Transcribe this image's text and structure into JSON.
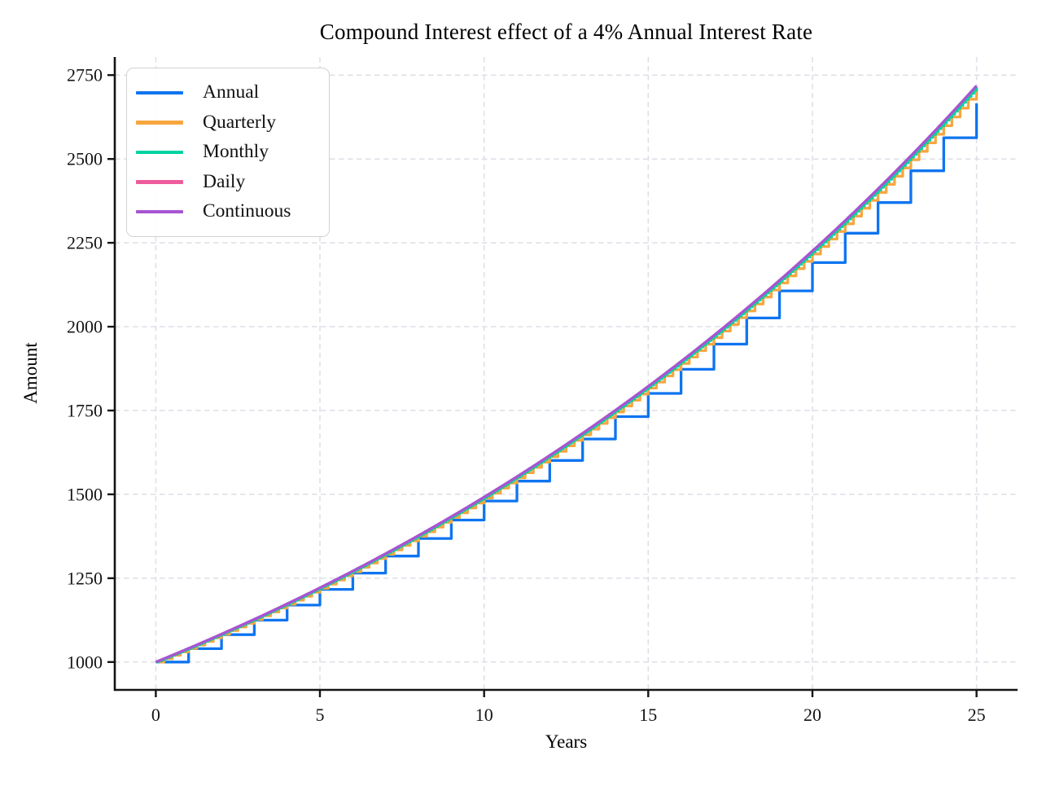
{
  "chart_data": {
    "type": "line",
    "title": "Compound Interest effect of a 4% Annual Interest Rate",
    "xlabel": "Years",
    "ylabel": "Amount",
    "xlim": [
      -1.25,
      26.25
    ],
    "ylim": [
      917,
      2804
    ],
    "xticks": [
      0,
      5,
      10,
      15,
      20,
      25
    ],
    "yticks": [
      1000,
      1250,
      1500,
      1750,
      2000,
      2250,
      2500,
      2750
    ],
    "grid": true,
    "gridline_color": "#dcdfe6",
    "axis_color": "#141414",
    "legend": {
      "position": "upper left",
      "border_color": "#d2d2d2"
    },
    "model": {
      "principal": 1000,
      "annual_rate": 0.04,
      "years": 25
    },
    "x_years": [
      0,
      1,
      2,
      3,
      4,
      5,
      6,
      7,
      8,
      9,
      10,
      11,
      12,
      13,
      14,
      15,
      16,
      17,
      18,
      19,
      20,
      21,
      22,
      23,
      24,
      25
    ],
    "series": [
      {
        "name": "Annual",
        "color": "#0e74f0",
        "compounds_per_year": 1,
        "line_style": "step",
        "year_end_values": [
          1000.0,
          1040.0,
          1081.6,
          1124.86,
          1169.86,
          1216.65,
          1265.32,
          1315.93,
          1368.57,
          1423.31,
          1480.24,
          1539.45,
          1601.03,
          1665.07,
          1731.68,
          1800.94,
          1872.98,
          1947.9,
          2025.82,
          2106.85,
          2191.12,
          2278.77,
          2369.92,
          2464.72,
          2563.3,
          2665.84
        ]
      },
      {
        "name": "Quarterly",
        "color": "#f7a63f",
        "compounds_per_year": 4,
        "line_style": "step",
        "year_end_values": [
          1000.0,
          1040.6,
          1082.86,
          1126.83,
          1172.58,
          1220.19,
          1269.73,
          1321.29,
          1374.94,
          1430.77,
          1488.86,
          1549.32,
          1612.23,
          1677.69,
          1745.81,
          1816.7,
          1890.46,
          1967.22,
          2047.1,
          2130.23,
          2216.72,
          2306.72,
          2400.39,
          2497.85,
          2599.27,
          2704.81
        ]
      },
      {
        "name": "Monthly",
        "color": "#00d2a0",
        "compounds_per_year": 12,
        "line_style": "step",
        "year_end_values": [
          1000.0,
          1040.74,
          1083.14,
          1127.27,
          1173.2,
          1221.0,
          1270.74,
          1322.52,
          1376.4,
          1432.48,
          1490.83,
          1551.57,
          1614.78,
          1680.57,
          1749.04,
          1820.3,
          1894.46,
          1971.64,
          2051.96,
          2135.56,
          2222.57,
          2313.12,
          2407.36,
          2505.44,
          2607.52,
          2713.77
        ]
      },
      {
        "name": "Daily",
        "color": "#ee5c9c",
        "compounds_per_year": 365,
        "line_style": "step",
        "year_end_values": [
          1000.0,
          1040.81,
          1083.28,
          1127.49,
          1173.5,
          1221.39,
          1271.24,
          1323.13,
          1377.12,
          1433.32,
          1491.78,
          1552.7,
          1616.06,
          1682.01,
          1750.65,
          1822.1,
          1896.45,
          1973.84,
          2054.39,
          2138.23,
          2225.39,
          2316.28,
          2410.81,
          2509.19,
          2611.59,
          2718.13
        ]
      },
      {
        "name": "Continuous",
        "color": "#a655d2",
        "compounds_per_year": null,
        "line_style": "smooth",
        "year_end_values": [
          1000.0,
          1040.81,
          1083.29,
          1127.5,
          1173.51,
          1221.4,
          1271.25,
          1323.13,
          1377.13,
          1433.33,
          1491.82,
          1552.71,
          1616.07,
          1682.03,
          1750.67,
          1822.12,
          1896.48,
          1973.88,
          2054.43,
          2138.28,
          2225.54,
          2316.37,
          2410.9,
          2509.29,
          2611.7,
          2718.28
        ]
      }
    ]
  }
}
